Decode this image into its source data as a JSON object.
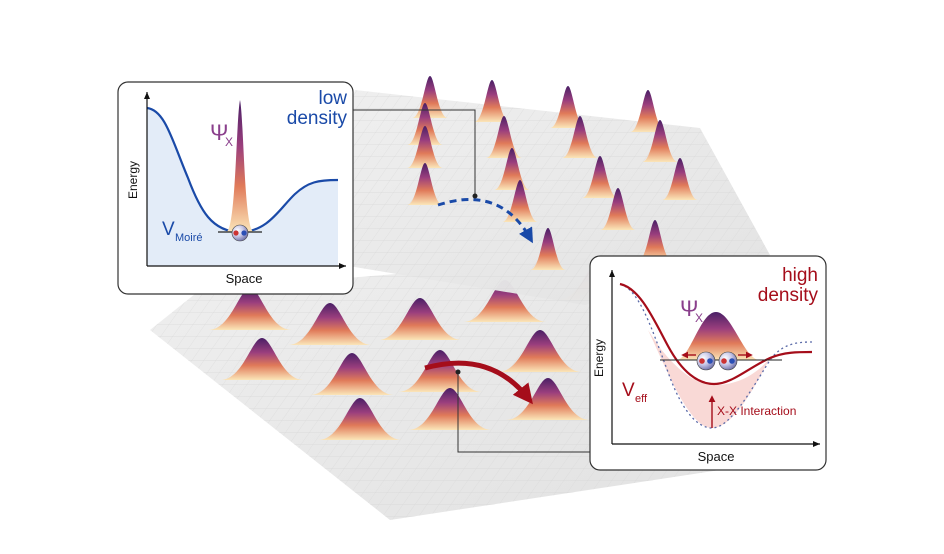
{
  "low_panel": {
    "title_line1": "low",
    "title_line2": "density",
    "psi": "Ψ",
    "psi_sub": "X",
    "v_main": "V",
    "v_sub": "Moiré",
    "xlabel": "Space",
    "ylabel": "Energy"
  },
  "high_panel": {
    "title_line1": "high",
    "title_line2": "density",
    "psi": "Ψ",
    "psi_sub": "X",
    "v_main": "V",
    "v_sub": "eff",
    "interaction": "X-X Interaction",
    "xlabel": "Space",
    "ylabel": "Energy"
  },
  "colors": {
    "blue": "#1a4aa8",
    "dark_red": "#a50d1a",
    "purple": "#8a3f8c",
    "well_fill_blue": "#e3ecf8",
    "well_fill_red": "#f9d9d6"
  },
  "icons": [
    "exciton-icon",
    "arrow-icon"
  ]
}
